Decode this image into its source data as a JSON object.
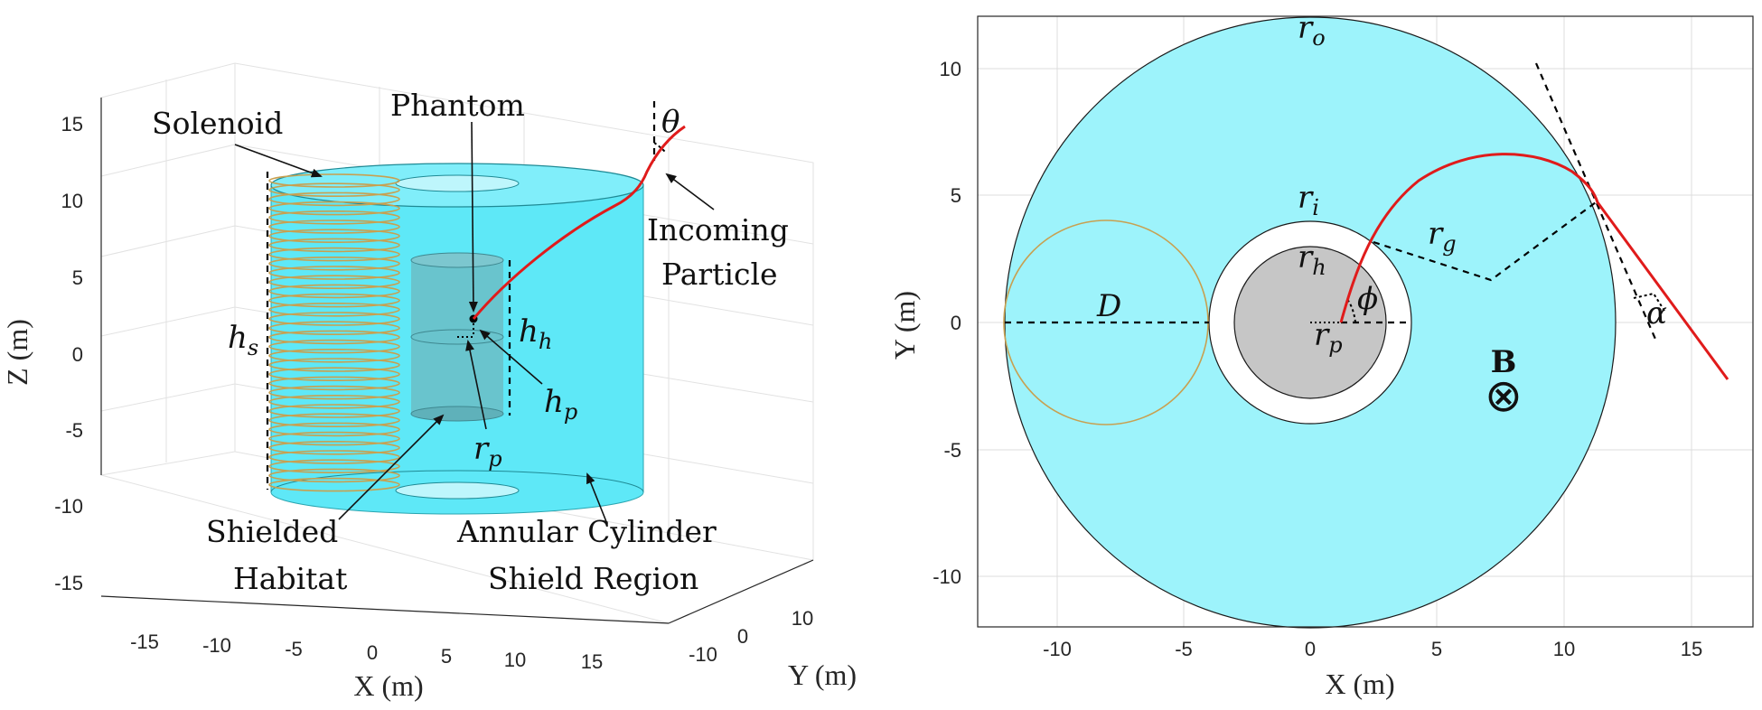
{
  "left_panel": {
    "z_ticks": [
      "15",
      "10",
      "5",
      "0",
      "-5",
      "-10",
      "-15"
    ],
    "x_ticks": [
      "-15",
      "-10",
      "-5",
      "0",
      "5",
      "10",
      "15"
    ],
    "y_ticks": [
      "-10",
      "0",
      "10"
    ],
    "z_label": "Z (m)",
    "x_label": "X (m)",
    "y_label": "Y (m)",
    "annotations": {
      "solenoid": "Solenoid",
      "phantom": "Phantom",
      "theta": "θ",
      "incoming_1": "Incoming",
      "incoming_2": "Particle",
      "hs": "h",
      "hs_sub": "s",
      "hh": "h",
      "hh_sub": "h",
      "hp": "h",
      "hp_sub": "p",
      "rp": "r",
      "rp_sub": "p",
      "shielded_1": "Shielded",
      "shielded_2": "Habitat",
      "annular_1": "Annular Cylinder",
      "annular_2": "Shield Region"
    },
    "colors": {
      "shield": "#5ee8f7",
      "habitat": "#6bbdc6",
      "trajectory": "#e01b1b",
      "solenoid": "#c8a050"
    }
  },
  "right_panel": {
    "x_ticks": [
      "-10",
      "-5",
      "0",
      "5",
      "10",
      "15"
    ],
    "y_ticks": [
      "10",
      "5",
      "0",
      "-5",
      "-10"
    ],
    "x_label": "X (m)",
    "y_label": "Y (m)",
    "annotations": {
      "ro": "r",
      "ro_sub": "o",
      "ri": "r",
      "ri_sub": "i",
      "rh": "r",
      "rh_sub": "h",
      "rp": "r",
      "rp_sub": "p",
      "rg": "r",
      "rg_sub": "g",
      "phi": "ϕ",
      "d": "D",
      "alpha": "α",
      "b": "B",
      "b_symbol": "⊗"
    },
    "colors": {
      "shield": "#9df3fb",
      "habitat": "#c6c6c6",
      "trajectory": "#e01b1b",
      "solenoid": "#c8a050"
    }
  }
}
